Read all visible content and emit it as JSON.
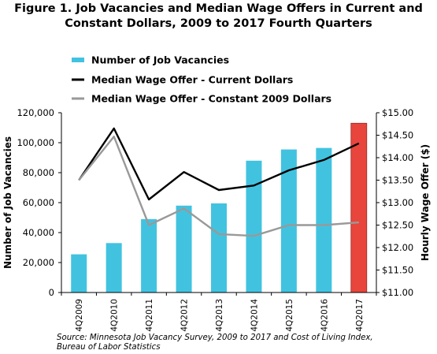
{
  "title_lines": [
    "Figure 1. Job Vacancies and Median Wage Offers in Current and",
    "Constant Dollars, 2009 to 2017 Fourth Quarters"
  ],
  "source_lines": [
    "Source: Minnesota Job Vacancy Survey, 2009 to 2017 and Cost of Living Index,",
    "Bureau of Labor Statistics"
  ],
  "chart_data": {
    "type": "bar",
    "categories": [
      "4Q2009",
      "4Q2010",
      "4Q2011",
      "4Q2012",
      "4Q2013",
      "4Q2014",
      "4Q2015",
      "4Q2016",
      "4Q2017"
    ],
    "ylabel": "Number of Job Vacancies",
    "y2label": "Hourly Wage Offer ($)",
    "ylim": [
      0,
      120000
    ],
    "y2lim": [
      11.0,
      15.0
    ],
    "yticks": [
      "0",
      "20,000",
      "40,000",
      "60,000",
      "80,000",
      "100,000",
      "120,000"
    ],
    "y2ticks": [
      "$11.00",
      "$11.50",
      "$12.00",
      "$12.50",
      "$13.00",
      "$13.50",
      "$14.00",
      "$14.50",
      "$15.00"
    ],
    "series": [
      {
        "name": "Number of Job Vacancies",
        "kind": "bar",
        "axis": "left",
        "color": "#41C3E0",
        "highlight_color": "#E8453C",
        "highlight_index": 8,
        "values": [
          25500,
          33000,
          49000,
          58000,
          59500,
          88000,
          95500,
          96500,
          113000
        ]
      },
      {
        "name": "Median Wage Offer - Current Dollars",
        "kind": "line",
        "axis": "right",
        "color": "#000000",
        "values": [
          13.5,
          14.65,
          13.07,
          13.68,
          13.28,
          13.38,
          13.72,
          13.95,
          14.32
        ]
      },
      {
        "name": "Median Wage Offer - Constant 2009 Dollars",
        "kind": "line",
        "axis": "right",
        "color": "#999999",
        "values": [
          13.5,
          14.47,
          12.5,
          12.87,
          12.3,
          12.26,
          12.5,
          12.5,
          12.56
        ]
      }
    ],
    "legend_position": "top-left",
    "grid": false
  }
}
